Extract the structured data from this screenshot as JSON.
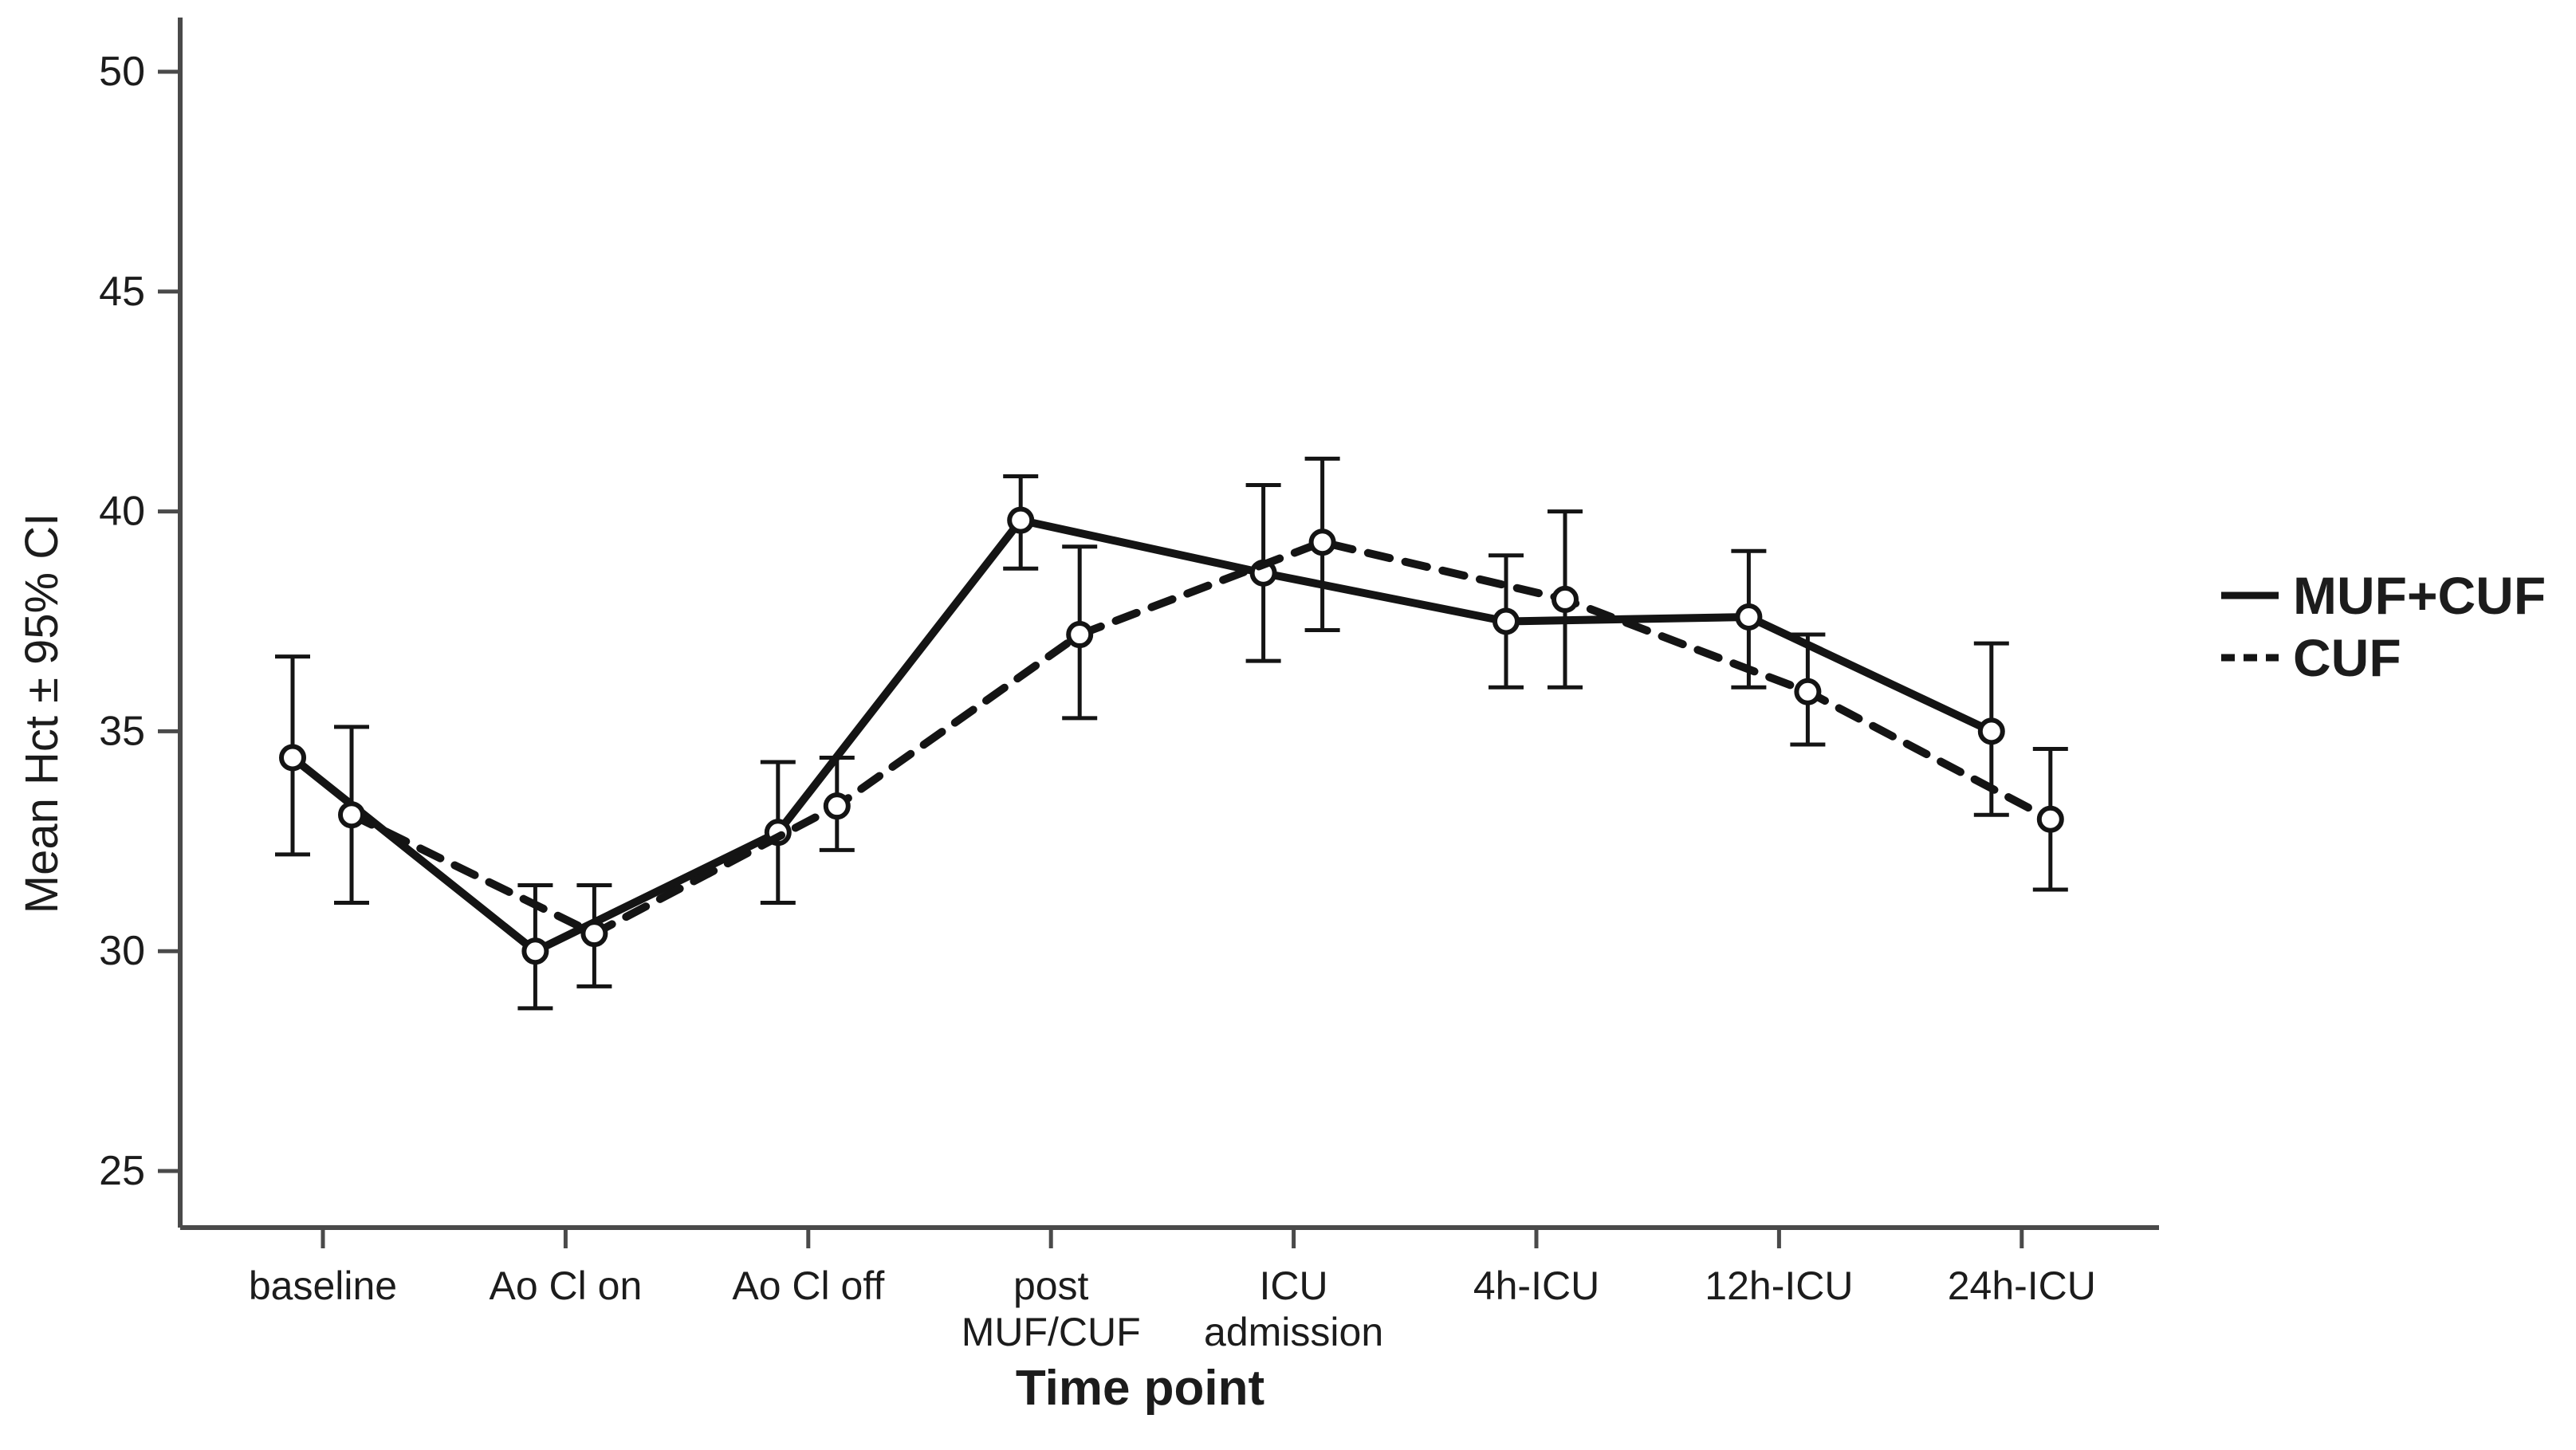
{
  "figure": {
    "background": "#ffffff",
    "text_color": "#1c1c1c",
    "axis_color": "#4a4a4a",
    "series_color": "#141414"
  },
  "y_axis": {
    "label": "Mean Hct ± 95% CI",
    "ticks": [
      "50",
      "45",
      "40",
      "35",
      "30",
      "25"
    ]
  },
  "x_axis": {
    "label": "Time point",
    "categories": [
      [
        "baseline"
      ],
      [
        "Ao Cl on"
      ],
      [
        "Ao Cl off"
      ],
      [
        "post",
        "MUF/CUF"
      ],
      [
        "ICU",
        "admission"
      ],
      [
        "4h-ICU"
      ],
      [
        "12h-ICU"
      ],
      [
        "24h-ICU"
      ]
    ]
  },
  "legend": {
    "items": [
      {
        "label": "MUF+CUF",
        "line": "solid"
      },
      {
        "label": "CUF",
        "line": "dashed"
      }
    ]
  },
  "chart_data": {
    "type": "line",
    "title": "",
    "xlabel": "Time point",
    "ylabel": "Mean Hct ± 95% CI",
    "categories": [
      "baseline",
      "Ao Cl on",
      "Ao Cl off",
      "post MUF/CUF",
      "ICU admission",
      "4h-ICU",
      "12h-ICU",
      "24h-ICU"
    ],
    "yticks": [
      50,
      45,
      40,
      35,
      30,
      25
    ],
    "ylim": [
      23.5,
      51.3
    ],
    "grid": false,
    "error_bars": "95% CI",
    "legend_position": "right",
    "marker": "open-circle",
    "series": [
      {
        "name": "MUF+CUF",
        "line_style": "solid",
        "values": [
          34.4,
          30.0,
          32.7,
          39.8,
          38.6,
          37.5,
          37.6,
          35.0
        ],
        "ci_low": [
          32.2,
          28.7,
          31.1,
          38.7,
          36.6,
          36.0,
          36.0,
          33.1
        ],
        "ci_high": [
          36.7,
          31.5,
          34.3,
          40.8,
          40.6,
          39.0,
          39.1,
          37.0
        ]
      },
      {
        "name": "CUF",
        "line_style": "dashed",
        "values": [
          33.1,
          30.4,
          33.3,
          37.2,
          39.3,
          38.0,
          35.9,
          33.0
        ],
        "ci_low": [
          31.1,
          29.2,
          32.3,
          35.3,
          37.3,
          36.0,
          34.7,
          31.4
        ],
        "ci_high": [
          35.1,
          31.5,
          34.4,
          39.2,
          41.2,
          40.0,
          37.2,
          34.6
        ]
      }
    ]
  }
}
